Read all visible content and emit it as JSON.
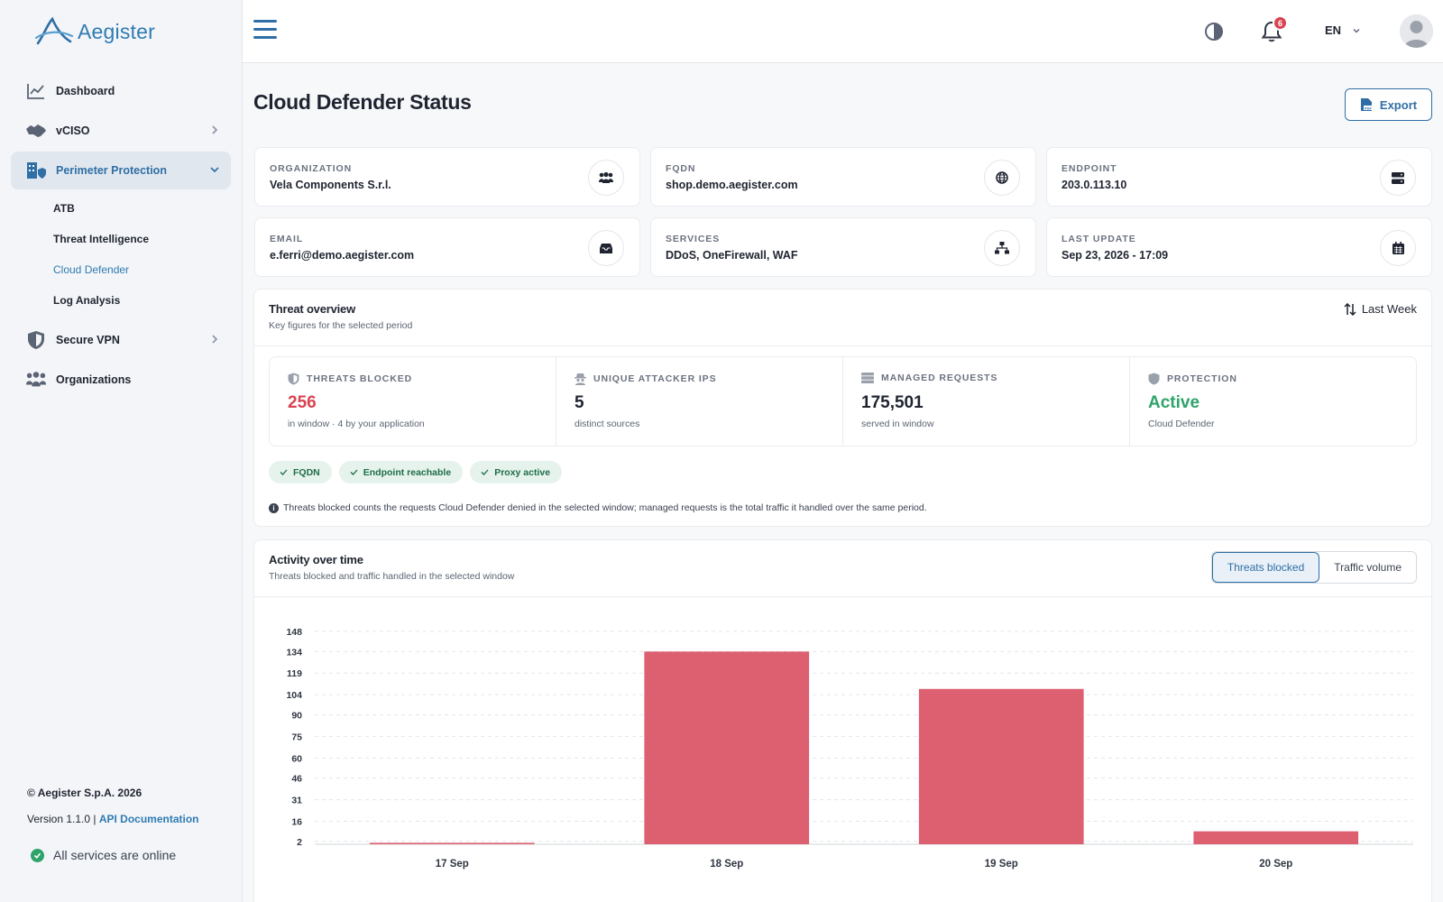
{
  "app": {
    "name": "Aegister"
  },
  "sidebar": {
    "items": [
      {
        "label": "Dashboard",
        "icon": "chart-line-icon"
      },
      {
        "label": "vCISO",
        "icon": "handshake-icon"
      },
      {
        "label": "Perimeter Protection",
        "icon": "building-shield-icon"
      },
      {
        "label": "Secure VPN",
        "icon": "shield-icon"
      },
      {
        "label": "Organizations",
        "icon": "people-group-icon"
      }
    ],
    "sub_items": [
      {
        "label": "ATB"
      },
      {
        "label": "Threat Intelligence"
      },
      {
        "label": "Cloud Defender"
      },
      {
        "label": "Log Analysis"
      }
    ],
    "footer": {
      "copyright": "© Aegister S.p.A. 2026",
      "version": "Version 1.1.0 | ",
      "api_link": "API Documentation",
      "status": "All services are online"
    }
  },
  "topbar": {
    "notifications": "6",
    "language": "EN"
  },
  "page": {
    "title": "Cloud Defender Status",
    "export_label": "Export"
  },
  "info_cards": [
    {
      "label": "ORGANIZATION",
      "value": "Vela Components S.r.l.",
      "icon": "users-icon"
    },
    {
      "label": "FQDN",
      "value": "shop.demo.aegister.com",
      "icon": "globe-icon"
    },
    {
      "label": "ENDPOINT",
      "value": "203.0.113.10",
      "icon": "server-icon"
    },
    {
      "label": "EMAIL",
      "value": "e.ferri@demo.aegister.com",
      "icon": "inbox-icon"
    },
    {
      "label": "SERVICES",
      "value": "DDoS, OneFirewall, WAF",
      "icon": "sitemap-icon"
    },
    {
      "label": "LAST UPDATE",
      "value": "Sep 23, 2026 - 17:09",
      "icon": "calendar-icon"
    }
  ],
  "overview": {
    "title": "Threat overview",
    "subtitle": "Key figures for the selected period",
    "period": "Last Week",
    "stats": [
      {
        "label": "THREATS BLOCKED",
        "value": "256",
        "sub": "in window · 4 by your application",
        "icon": "shield-half-icon"
      },
      {
        "label": "UNIQUE ATTACKER IPS",
        "value": "5",
        "sub": "distinct sources",
        "icon": "spy-icon"
      },
      {
        "label": "MANAGED REQUESTS",
        "value": "175,501",
        "sub": "served in window",
        "icon": "server-stack-icon"
      },
      {
        "label": "PROTECTION",
        "value": "Active",
        "sub": "Cloud Defender",
        "icon": "shield-icon"
      }
    ],
    "pills": [
      "FQDN",
      "Endpoint reachable",
      "Proxy active"
    ],
    "note": "Threats blocked counts the requests Cloud Defender denied in the selected window; managed requests is the total traffic it handled over the same period."
  },
  "activity": {
    "title": "Activity over time",
    "subtitle": "Threats blocked and traffic handled in the selected window",
    "tabs": [
      "Threats blocked",
      "Traffic volume"
    ],
    "active_tab": "Threats blocked"
  },
  "colors": {
    "accent": "#2f6fa5",
    "bar": "#dc6070",
    "red": "#d94452",
    "green": "#2fa36b"
  },
  "chart_data": {
    "type": "bar",
    "categories": [
      "17 Sep",
      "18 Sep",
      "19 Sep",
      "20 Sep"
    ],
    "values": [
      1,
      134,
      108,
      9
    ],
    "yticks": [
      2,
      16,
      31,
      46,
      60,
      75,
      90,
      104,
      119,
      134,
      148
    ],
    "ylim": [
      0,
      148
    ],
    "grid": true
  }
}
